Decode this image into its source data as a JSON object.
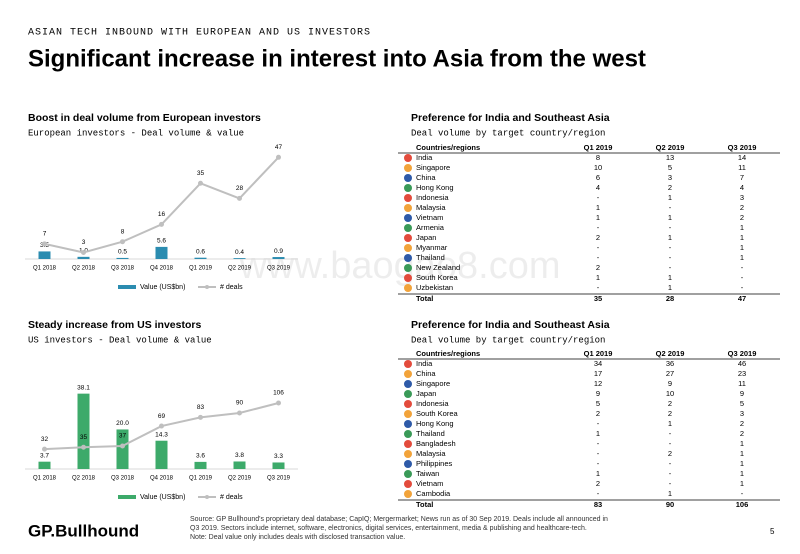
{
  "header": {
    "kicker": "ASIAN TECH INBOUND WITH EUROPEAN AND US INVESTORS",
    "title": "Significant increase in interest into Asia from the west"
  },
  "chart_data": [
    {
      "type": "combo",
      "title": "Boost in deal volume from European investors",
      "subtitle": "European investors - Deal volume & value",
      "categories": [
        "Q1 2018",
        "Q2 2018",
        "Q3 2018",
        "Q4 2018",
        "Q1 2019",
        "Q2 2019",
        "Q3 2019"
      ],
      "ylim": [
        0,
        55
      ],
      "y2lim": [
        0,
        55
      ],
      "series": [
        {
          "name": "Value (US$bn)",
          "type": "bar",
          "color": "#2b8cb0",
          "values": [
            3.5,
            1.0,
            0.5,
            5.6,
            0.6,
            0.4,
            0.9
          ],
          "value_labels": [
            "3.5",
            "1.0",
            "0.5",
            "5.6",
            "0.6",
            "0.4",
            "0.9"
          ]
        },
        {
          "name": "# deals",
          "type": "line",
          "axis": "y2",
          "color": "#bfbfbf",
          "values": [
            7,
            3,
            8,
            16,
            35,
            28,
            47
          ]
        }
      ]
    },
    {
      "type": "combo",
      "title": "Steady increase from US investors",
      "subtitle": "US investors - Deal volume & value",
      "categories": [
        "Q1 2018",
        "Q2 2018",
        "Q3 2018",
        "Q4 2018",
        "Q1 2019",
        "Q2 2019",
        "Q3 2019"
      ],
      "ylim": [
        0,
        45
      ],
      "y2lim": [
        0,
        143
      ],
      "series": [
        {
          "name": "Value (US$bn)",
          "type": "bar",
          "color": "#3daa6a",
          "values": [
            3.7,
            38.1,
            20.0,
            14.3,
            3.6,
            3.8,
            3.3
          ],
          "value_labels": [
            "3.7",
            "38.1",
            "20.0",
            "14.3",
            "3.6",
            "3.8",
            "3.3"
          ]
        },
        {
          "name": "# deals",
          "type": "line",
          "axis": "y2",
          "color": "#bfbfbf",
          "values": [
            32,
            35,
            37,
            69,
            83,
            90,
            106
          ]
        }
      ]
    }
  ],
  "tables": [
    {
      "title": "Preference for India and Southeast Asia",
      "subtitle": "Deal volume by target country/region",
      "columns": [
        "Countries/regions",
        "Q1 2019",
        "Q2 2019",
        "Q3 2019"
      ],
      "rows": [
        [
          "India",
          "8",
          "13",
          "14"
        ],
        [
          "Singapore",
          "10",
          "5",
          "11"
        ],
        [
          "China",
          "6",
          "3",
          "7"
        ],
        [
          "Hong Kong",
          "4",
          "2",
          "4"
        ],
        [
          "Indonesia",
          "-",
          "1",
          "3"
        ],
        [
          "Malaysia",
          "1",
          "-",
          "2"
        ],
        [
          "Vietnam",
          "1",
          "1",
          "2"
        ],
        [
          "Armenia",
          "-",
          "-",
          "1"
        ],
        [
          "Japan",
          "2",
          "1",
          "1"
        ],
        [
          "Myanmar",
          "-",
          "-",
          "1"
        ],
        [
          "Thailand",
          "-",
          "-",
          "1"
        ],
        [
          "New Zealand",
          "2",
          "-",
          "-"
        ],
        [
          "South Korea",
          "1",
          "1",
          "-"
        ],
        [
          "Uzbekistan",
          "-",
          "1",
          "-"
        ]
      ],
      "total": [
        "Total",
        "35",
        "28",
        "47"
      ]
    },
    {
      "title": "Preference for India and Southeast Asia",
      "subtitle": "Deal volume by target country/region",
      "columns": [
        "Countries/regions",
        "Q1 2019",
        "Q2 2019",
        "Q3 2019"
      ],
      "rows": [
        [
          "India",
          "34",
          "36",
          "46"
        ],
        [
          "China",
          "17",
          "27",
          "23"
        ],
        [
          "Singapore",
          "12",
          "9",
          "11"
        ],
        [
          "Japan",
          "9",
          "10",
          "9"
        ],
        [
          "Indonesia",
          "5",
          "2",
          "5"
        ],
        [
          "South Korea",
          "2",
          "2",
          "3"
        ],
        [
          "Hong Kong",
          "-",
          "1",
          "2"
        ],
        [
          "Thailand",
          "1",
          "-",
          "2"
        ],
        [
          "Bangladesh",
          "-",
          "-",
          "1"
        ],
        [
          "Malaysia",
          "-",
          "2",
          "1"
        ],
        [
          "Philippines",
          "-",
          "-",
          "1"
        ],
        [
          "Taiwan",
          "1",
          "-",
          "1"
        ],
        [
          "Vietnam",
          "2",
          "-",
          "1"
        ],
        [
          "Cambodia",
          "-",
          "1",
          "-"
        ]
      ],
      "total": [
        "Total",
        "83",
        "90",
        "106"
      ]
    }
  ],
  "watermark": "www.baogao8.com",
  "footer": {
    "logo": "GP.Bullhound",
    "source": "Source: GP Bullhound's proprietary deal database; CapIQ; Mergermarket; News run as of 30 Sep 2019. Deals include all announced in Q3 2019. Sectors include internet, software, electronics, digital services, entertainment, media & publishing and healthcare-tech.",
    "note": "Note: Deal value only includes deals with disclosed transaction value.",
    "page": "5"
  }
}
